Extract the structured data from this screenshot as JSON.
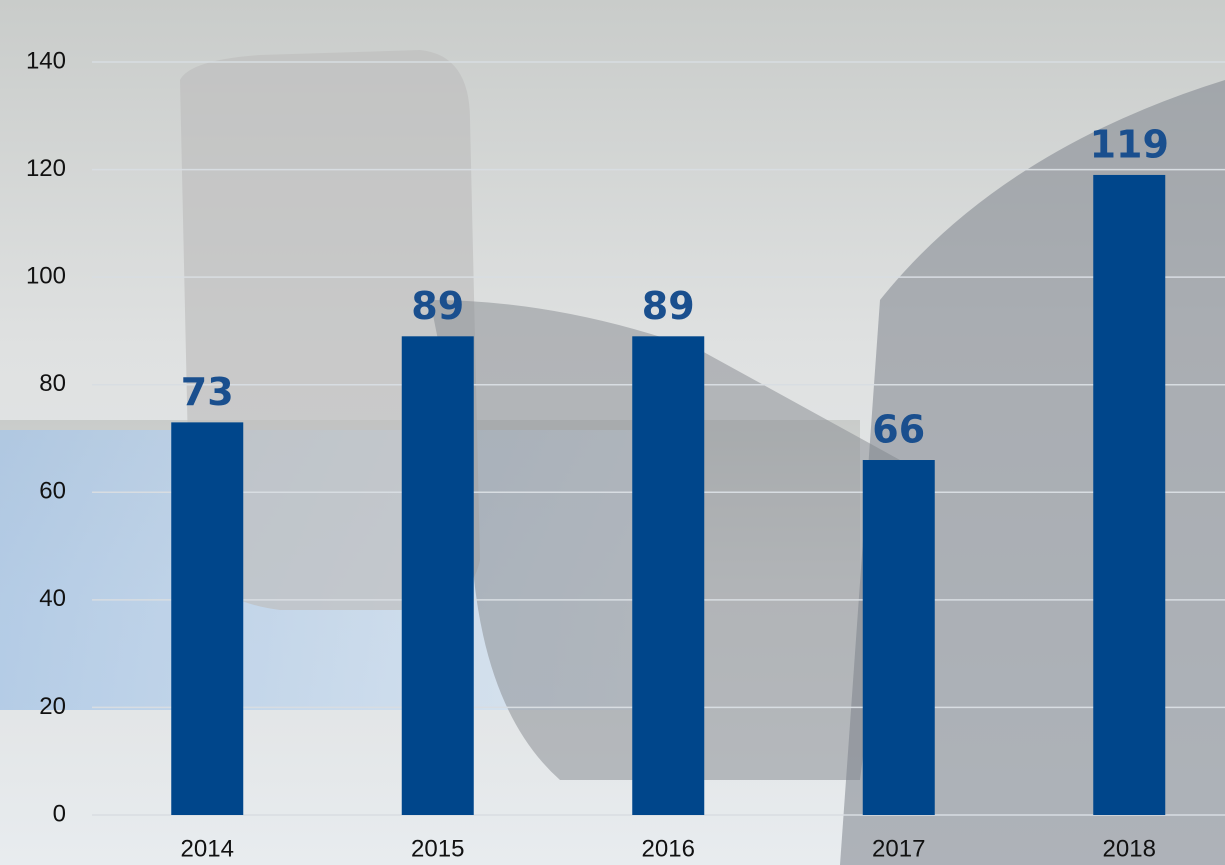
{
  "chart_data": {
    "type": "bar",
    "categories": [
      "2014",
      "2015",
      "2016",
      "2017",
      "2018"
    ],
    "values": [
      73,
      89,
      89,
      66,
      119
    ],
    "color": "#00468b",
    "ylim": [
      0,
      140
    ],
    "yticks": [
      0,
      20,
      40,
      60,
      80,
      100,
      120,
      140
    ],
    "grid": true
  }
}
